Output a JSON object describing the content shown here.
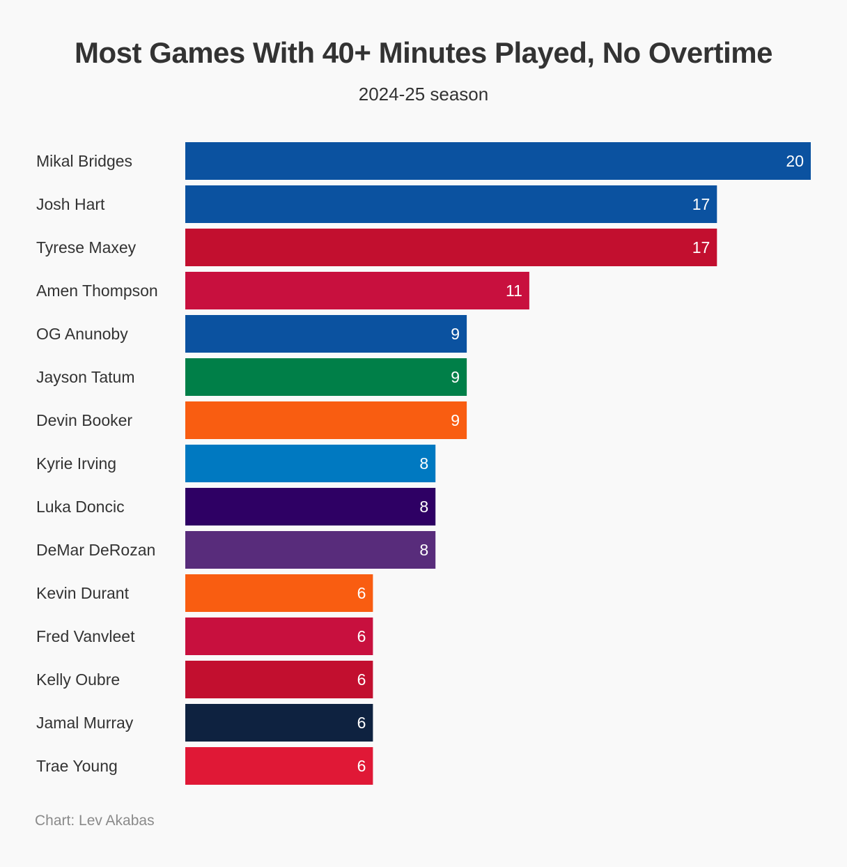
{
  "chart_data": {
    "type": "bar",
    "orientation": "horizontal",
    "title": "Most Games With 40+ Minutes Played, No Overtime",
    "subtitle": "2024-25 season",
    "credit": "Chart: Lev Akabas",
    "xlabel": "",
    "ylabel": "",
    "xlim": [
      0,
      20
    ],
    "grid": false,
    "legend": "none",
    "data_labels": "inside-end",
    "categories": [
      "Mikal Bridges",
      "Josh Hart",
      "Tyrese Maxey",
      "Amen Thompson",
      "OG Anunoby",
      "Jayson Tatum",
      "Devin Booker",
      "Kyrie Irving",
      "Luka Doncic",
      "DeMar DeRozan",
      "Kevin Durant",
      "Fred Vanvleet",
      "Kelly Oubre",
      "Jamal Murray",
      "Trae Young"
    ],
    "values": [
      20,
      17,
      17,
      11,
      9,
      9,
      9,
      8,
      8,
      8,
      6,
      6,
      6,
      6,
      6
    ],
    "colors": [
      "#0b52a0",
      "#0b52a0",
      "#c20f2f",
      "#c8103e",
      "#0b52a0",
      "#007f48",
      "#f95d11",
      "#0079c1",
      "#2e0064",
      "#582c7b",
      "#f95d11",
      "#c8103e",
      "#c20f2f",
      "#0e2240",
      "#e01836"
    ]
  }
}
